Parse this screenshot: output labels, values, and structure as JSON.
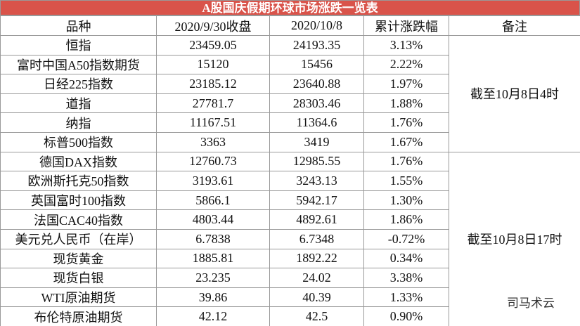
{
  "title": "A股国庆假期环球市场涨跌一览表",
  "table": {
    "header": [
      "品种",
      "2020/9/30收盘",
      "2020/10/8",
      "累计涨跌幅",
      "备注"
    ],
    "rows": [
      [
        "恒指",
        "23459.05",
        "24193.35",
        "3.13%"
      ],
      [
        "富时中国A50指数期货",
        "15120",
        "15456",
        "2.22%"
      ],
      [
        "日经225指数",
        "23185.12",
        "23640.88",
        "1.97%"
      ],
      [
        "道指",
        "27781.7",
        "28303.46",
        "1.88%"
      ],
      [
        "纳指",
        "11167.51",
        "11364.6",
        "1.76%"
      ],
      [
        "标普500指数",
        "3363",
        "3419",
        "1.67%"
      ],
      [
        "德国DAX指数",
        "12760.73",
        "12985.55",
        "1.76%"
      ],
      [
        "欧洲斯托克50指数",
        "3193.61",
        "3243.13",
        "1.55%"
      ],
      [
        "英国富时100指数",
        "5866.1",
        "5942.17",
        "1.30%"
      ],
      [
        "法国CAC40指数",
        "4803.44",
        "4892.61",
        "1.86%"
      ],
      [
        "美元兑人民币（在岸）",
        "6.7838",
        "6.7348",
        "-0.72%"
      ],
      [
        "现货黄金",
        "1885.81",
        "1892.22",
        "0.34%"
      ],
      [
        "现货白银",
        "23.235",
        "24.02",
        "3.38%"
      ],
      [
        "WTI原油期货",
        "39.86",
        "40.39",
        "1.33%"
      ],
      [
        "布伦特原油期货",
        "42.12",
        "42.5",
        "0.90%"
      ]
    ],
    "notes": [
      "截至10月8日4时",
      "截至10月8日17时"
    ]
  },
  "watermark": "司马术云"
}
